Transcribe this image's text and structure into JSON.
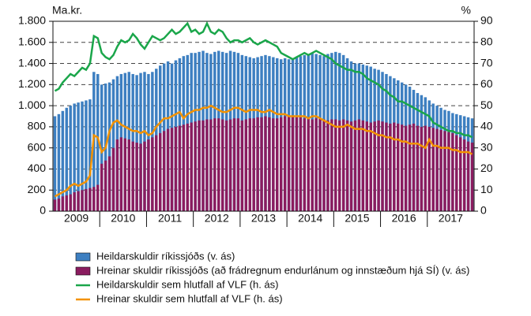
{
  "chart_data": {
    "type": "bar-line",
    "y_label": "Ma.kr.",
    "y2_label": "%",
    "categories": [
      null,
      null,
      null,
      null,
      null,
      null,
      null,
      null,
      null,
      null,
      null,
      null,
      null,
      null,
      null,
      null,
      null,
      null,
      null,
      null,
      null,
      null,
      null,
      null,
      null,
      null,
      null,
      null,
      null,
      null,
      null,
      null,
      null,
      null,
      null,
      null,
      null,
      null,
      null,
      null,
      null,
      null,
      null,
      null,
      null,
      null,
      null,
      null,
      null,
      null,
      null,
      null,
      null,
      null,
      null,
      null,
      null,
      null,
      null,
      null,
      null,
      null,
      null,
      null,
      null,
      null,
      null,
      null,
      null,
      null,
      null,
      null,
      null,
      null,
      null,
      null,
      null,
      null,
      null,
      null,
      null,
      null,
      null,
      null,
      null,
      null,
      null,
      null,
      null,
      null,
      null,
      null,
      null,
      null,
      null,
      null,
      null,
      null,
      null,
      null,
      null,
      null,
      null,
      null,
      null,
      null,
      null,
      null
    ],
    "years": [
      "2009",
      "2010",
      "2011",
      "2012",
      "2013",
      "2014",
      "2015",
      "2016",
      "2017"
    ],
    "ylim": [
      0,
      1800
    ],
    "yticks": [
      0,
      200,
      400,
      600,
      800,
      {
        "value": 1000,
        "label": "1.000"
      },
      {
        "value": 1200,
        "label": "1.200"
      },
      {
        "value": 1400,
        "label": "1.400"
      },
      {
        "value": 1600,
        "label": "1.600"
      },
      {
        "value": 1800,
        "label": "1.800"
      }
    ],
    "y2lim": [
      0,
      90
    ],
    "y2ticks": [
      0,
      10,
      20,
      30,
      40,
      50,
      60,
      70,
      80,
      90
    ],
    "grid": true,
    "series": [
      {
        "name": "Heildarskuldir ríkissjóðs (v. ás)",
        "kind": "bar",
        "color": "#3d7fc1",
        "values": [
          900,
          920,
          950,
          980,
          1000,
          1020,
          1030,
          1040,
          1050,
          1060,
          1320,
          1300,
          1200,
          1210,
          1220,
          1250,
          1280,
          1300,
          1310,
          1320,
          1300,
          1290,
          1310,
          1320,
          1300,
          1320,
          1350,
          1380,
          1400,
          1420,
          1400,
          1430,
          1450,
          1470,
          1480,
          1500,
          1500,
          1510,
          1520,
          1500,
          1490,
          1510,
          1520,
          1510,
          1500,
          1520,
          1510,
          1500,
          1480,
          1470,
          1460,
          1450,
          1460,
          1470,
          1480,
          1470,
          1460,
          1450,
          1440,
          1450,
          1440,
          1450,
          1460,
          1470,
          1480,
          1490,
          1500,
          1490,
          1480,
          1470,
          1490,
          1500,
          1510,
          1500,
          1480,
          1450,
          1420,
          1400,
          1400,
          1390,
          1380,
          1370,
          1350,
          1340,
          1320,
          1300,
          1280,
          1260,
          1240,
          1220,
          1200,
          1180,
          1150,
          1120,
          1100,
          1080,
          1050,
          1020,
          1000,
          980,
          960,
          950,
          930,
          920,
          910,
          900,
          890,
          880
        ]
      },
      {
        "name": "Hreinar skuldir ríkissjóðs (að frádregnum endurlánum og innstæðum hjá SÍ) (v. ás)",
        "kind": "bar",
        "color": "#8a1c5f",
        "values": [
          110,
          120,
          140,
          150,
          160,
          180,
          190,
          200,
          210,
          220,
          230,
          250,
          450,
          480,
          520,
          600,
          680,
          700,
          690,
          680,
          660,
          650,
          640,
          660,
          680,
          700,
          720,
          740,
          760,
          780,
          790,
          800,
          810,
          820,
          830,
          840,
          850,
          860,
          860,
          870,
          870,
          880,
          880,
          870,
          860,
          870,
          880,
          880,
          860,
          870,
          880,
          880,
          890,
          890,
          900,
          890,
          880,
          880,
          890,
          900,
          900,
          900,
          890,
          890,
          880,
          880,
          870,
          880,
          880,
          870,
          860,
          870,
          870,
          860,
          870,
          860,
          850,
          860,
          870,
          860,
          850,
          840,
          850,
          860,
          850,
          840,
          830,
          840,
          830,
          820,
          810,
          820,
          830,
          810,
          800,
          810,
          800,
          790,
          780,
          770,
          760,
          750,
          740,
          720,
          700,
          680,
          660,
          650
        ]
      },
      {
        "name": "Heildarskuldir sem hlutfall af VLF (h. ás)",
        "kind": "line",
        "axis": "y2",
        "color": "#1aa64a",
        "values": [
          57,
          58,
          61,
          63,
          65,
          64,
          66,
          68,
          67,
          70,
          83,
          82,
          75,
          73,
          72,
          74,
          78,
          81,
          80,
          81,
          84,
          82,
          79,
          77,
          80,
          83,
          82,
          81,
          82,
          84,
          86,
          84,
          85,
          87,
          89,
          85,
          86,
          84,
          85,
          89,
          85,
          84,
          86,
          85,
          82,
          80,
          81,
          81,
          80,
          81,
          82,
          80,
          79,
          80,
          81,
          80,
          79,
          78,
          75,
          74,
          73,
          72,
          73,
          74,
          75,
          74,
          75,
          76,
          75,
          74,
          73,
          72,
          70,
          69,
          68,
          67,
          67,
          66,
          66,
          65,
          63,
          62,
          61,
          60,
          58,
          57,
          55,
          54,
          52,
          52,
          51,
          50,
          49,
          48,
          47,
          46,
          45,
          42,
          41,
          40,
          39,
          38,
          38,
          37,
          37,
          36,
          36,
          35
        ]
      },
      {
        "name": "Hreinar skuldir sem hlutfall af VLF (h. ás)",
        "kind": "line",
        "axis": "y2",
        "color": "#f39200",
        "values": [
          7,
          8,
          9,
          10,
          12,
          13,
          12,
          13,
          14,
          17,
          36,
          35,
          28,
          30,
          38,
          42,
          43,
          41,
          40,
          39,
          38,
          38,
          37,
          38,
          36,
          37,
          40,
          42,
          44,
          44,
          45,
          46,
          47,
          44,
          46,
          47,
          48,
          48,
          49,
          49,
          50,
          49,
          48,
          47,
          47,
          48,
          49,
          49,
          48,
          47,
          48,
          48,
          48,
          47,
          47,
          48,
          47,
          46,
          46,
          46,
          45,
          45,
          45,
          45,
          45,
          44,
          45,
          45,
          44,
          43,
          42,
          41,
          40,
          40,
          40,
          41,
          40,
          39,
          39,
          39,
          38,
          38,
          37,
          36,
          36,
          35,
          35,
          34,
          34,
          33,
          33,
          32,
          32,
          32,
          31,
          30,
          34,
          31,
          31,
          30,
          30,
          30,
          29,
          29,
          28,
          28,
          28,
          27
        ]
      }
    ]
  }
}
